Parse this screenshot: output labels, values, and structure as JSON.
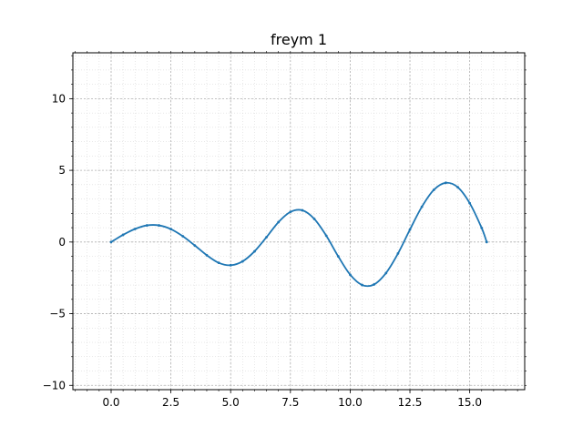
{
  "chart_data": {
    "type": "line",
    "title": "freym 1",
    "xlabel": "",
    "ylabel": "",
    "xlim": [
      -1.6,
      17.3
    ],
    "ylim": [
      -10.3,
      13.2
    ],
    "grid": true,
    "minor_grid": true,
    "x_ticks": [
      "0.0",
      "2.5",
      "5.0",
      "7.5",
      "10.0",
      "12.5",
      "15.0"
    ],
    "y_ticks": [
      "−10",
      "−5",
      "0",
      "5",
      "10"
    ],
    "x_tick_values": [
      0,
      2.5,
      5,
      7.5,
      10,
      12.5,
      15
    ],
    "y_tick_values": [
      -10,
      -5,
      0,
      5,
      10
    ],
    "series": [
      {
        "color": "#1f77b4",
        "marker": "point",
        "x": [
          0,
          0.5,
          1,
          1.5,
          2,
          2.5,
          3,
          3.5,
          4,
          4.5,
          5,
          5.5,
          6,
          6.5,
          7,
          7.5,
          8,
          8.5,
          9,
          9.5,
          10,
          10.5,
          11,
          11.5,
          12,
          12.5,
          13,
          13.5,
          14,
          14.5,
          15,
          15.5,
          15.71
        ],
        "y": [
          0.0,
          0.5,
          0.91,
          1.16,
          1.16,
          0.9,
          0.4,
          -0.24,
          -0.92,
          -1.45,
          -1.62,
          -1.35,
          -0.65,
          0.34,
          1.39,
          2.1,
          2.21,
          1.61,
          0.44,
          -1.0,
          -2.28,
          -3.0,
          -2.96,
          -2.16,
          -0.8,
          0.87,
          2.46,
          3.64,
          4.13,
          3.82,
          2.71,
          0.98,
          0.0
        ]
      }
    ]
  }
}
